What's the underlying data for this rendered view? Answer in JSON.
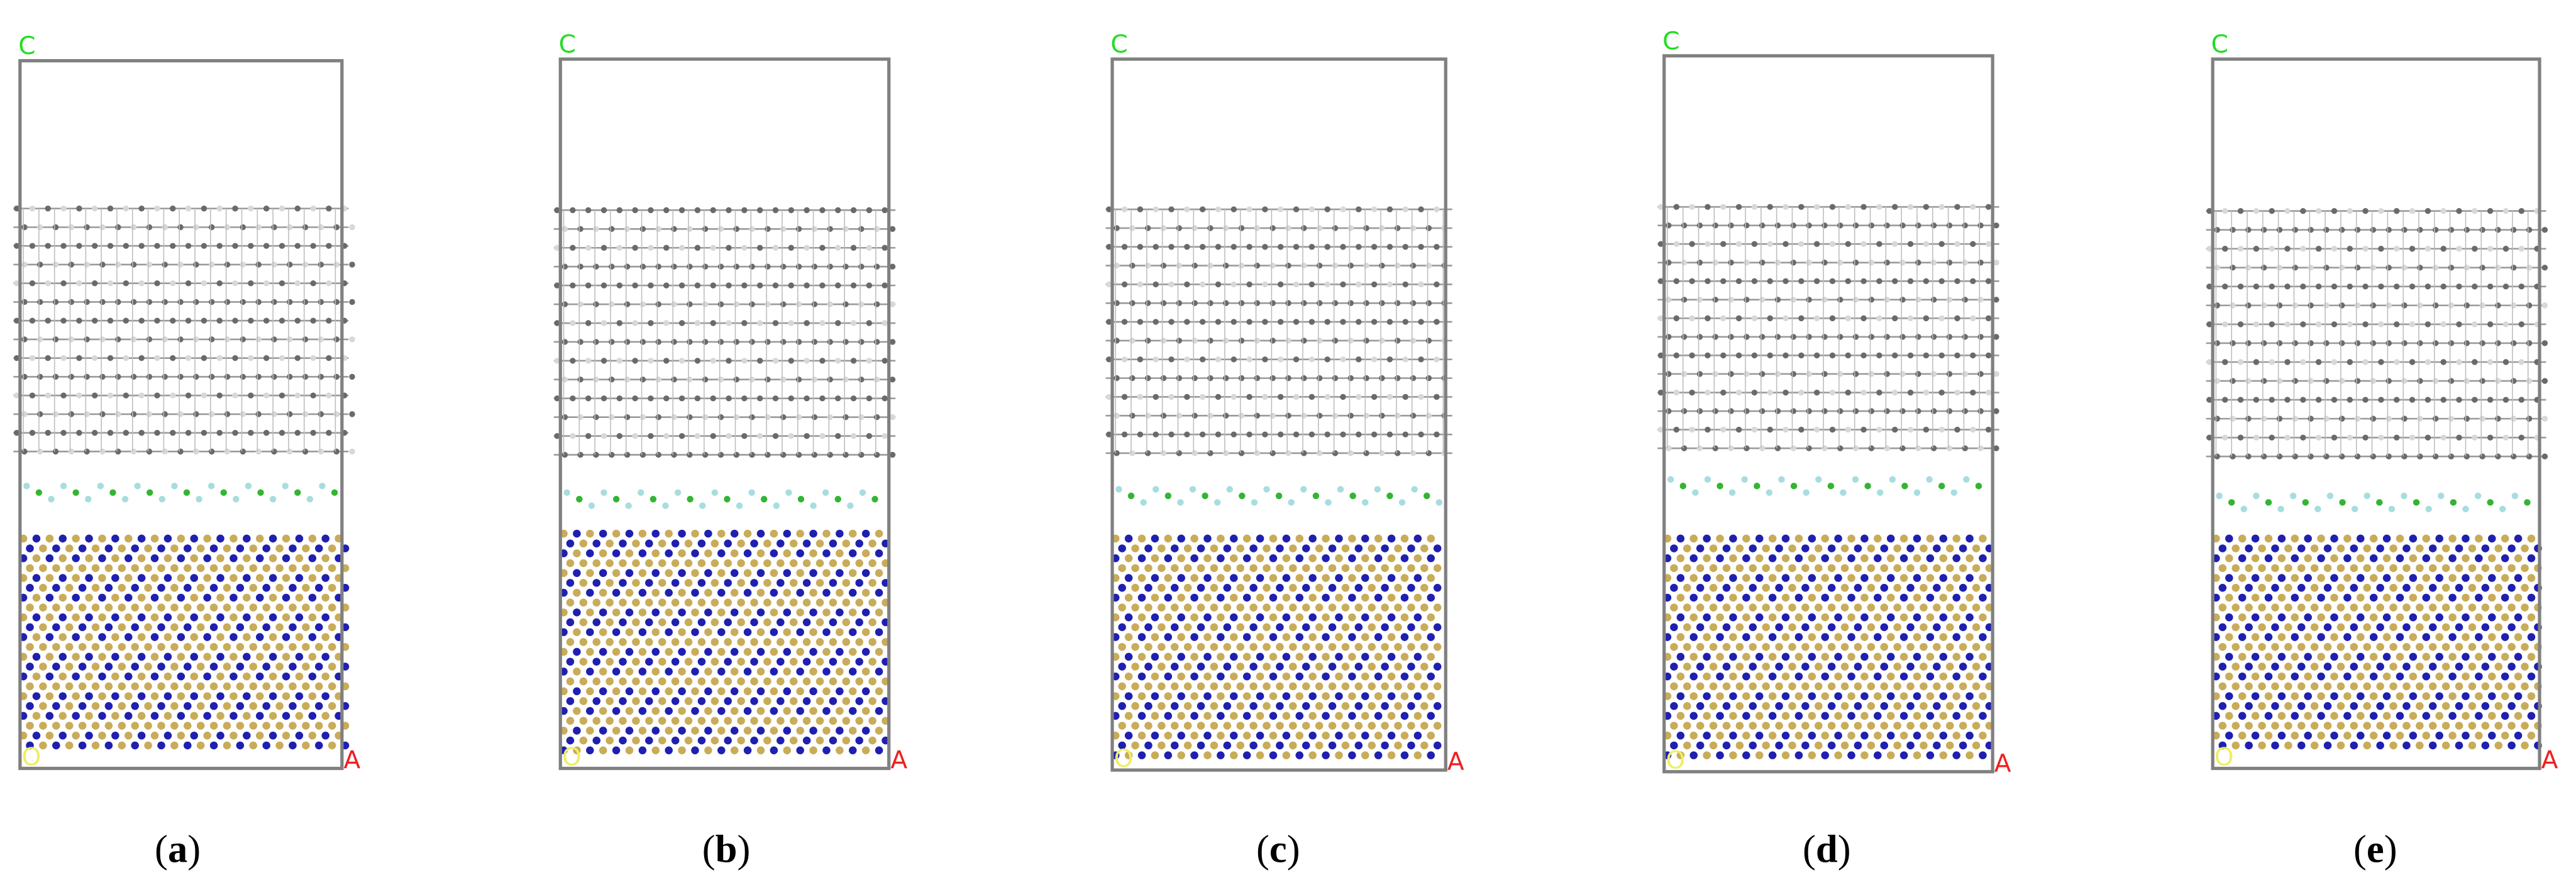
{
  "panels": [
    {
      "c_label": "C",
      "a_label": "A",
      "o_label": "O",
      "caption": [
        "(",
        "a",
        ")"
      ]
    },
    {
      "c_label": "C",
      "a_label": "A",
      "o_label": "O",
      "caption": [
        "(",
        "b",
        ")"
      ]
    },
    {
      "c_label": "C",
      "a_label": "A",
      "o_label": "O",
      "caption": [
        "(",
        "c",
        ")"
      ]
    },
    {
      "c_label": "C",
      "a_label": "A",
      "o_label": "O",
      "caption": [
        "(",
        "d",
        ")"
      ]
    },
    {
      "c_label": "C",
      "a_label": "A",
      "o_label": "O",
      "caption": [
        "(",
        "e",
        ")"
      ]
    }
  ]
}
